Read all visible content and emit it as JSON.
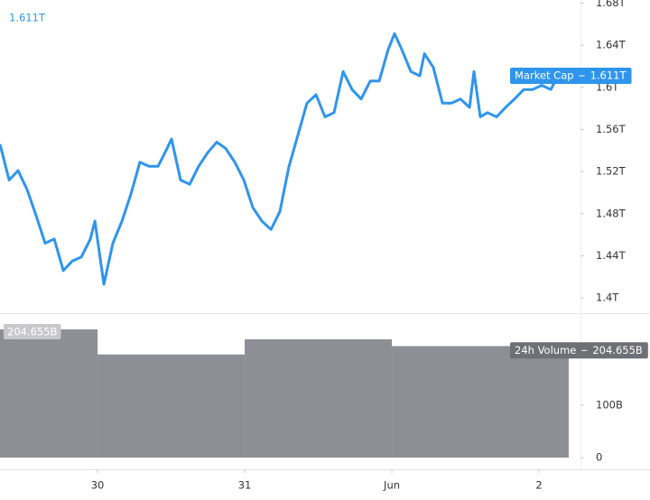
{
  "chart_data": [
    {
      "type": "line",
      "x": [
        -0.663,
        -0.601,
        -0.54,
        -0.479,
        -0.417,
        -0.356,
        -0.294,
        -0.233,
        -0.172,
        -0.11,
        -0.049,
        -0.018,
        0.043,
        0.104,
        0.166,
        0.227,
        0.288,
        0.35,
        0.411,
        0.472,
        0.503,
        0.564,
        0.626,
        0.687,
        0.748,
        0.81,
        0.871,
        0.933,
        0.994,
        1.055,
        1.117,
        1.178,
        1.239,
        1.301,
        1.362,
        1.423,
        1.485,
        1.546,
        1.607,
        1.669,
        1.73,
        1.791,
        1.853,
        1.914,
        1.975,
        2.018,
        2.067,
        2.129,
        2.19,
        2.221,
        2.282,
        2.344,
        2.405,
        2.466,
        2.528,
        2.558,
        2.601,
        2.65,
        2.712,
        2.773,
        2.834,
        2.896,
        2.957,
        3.018,
        3.08,
        3.129
      ],
      "series": [
        {
          "name": "Market Cap",
          "color": "#2f95ec",
          "values": [
            1.546,
            1.512,
            1.521,
            1.503,
            1.478,
            1.452,
            1.456,
            1.426,
            1.435,
            1.439,
            1.456,
            1.473,
            1.413,
            1.452,
            1.473,
            1.499,
            1.529,
            1.525,
            1.525,
            1.542,
            1.551,
            1.512,
            1.508,
            1.525,
            1.538,
            1.548,
            1.542,
            1.529,
            1.512,
            1.486,
            1.473,
            1.465,
            1.482,
            1.525,
            1.555,
            1.585,
            1.593,
            1.572,
            1.576,
            1.615,
            1.598,
            1.589,
            1.606,
            1.606,
            1.636,
            1.651,
            1.636,
            1.615,
            1.611,
            1.632,
            1.619,
            1.585,
            1.585,
            1.589,
            1.581,
            1.615,
            1.572,
            1.576,
            1.572,
            1.581,
            1.589,
            1.598,
            1.598,
            1.602,
            1.598,
            1.611
          ],
          "current": {
            "value": 1.611,
            "label": "1.611T"
          }
        }
      ],
      "xlim": [
        -0.663,
        3.282
      ],
      "ylim": [
        1.383,
        1.683
      ],
      "yticks": [
        {
          "value": 1.4,
          "label": "1.4T"
        },
        {
          "value": 1.44,
          "label": "1.44T"
        },
        {
          "value": 1.48,
          "label": "1.48T"
        },
        {
          "value": 1.52,
          "label": "1.52T"
        },
        {
          "value": 1.56,
          "label": "1.56T"
        },
        {
          "value": 1.6,
          "label": "1.6T"
        },
        {
          "value": 1.64,
          "label": "1.64T"
        },
        {
          "value": 1.68,
          "label": "1.68T"
        }
      ]
    },
    {
      "type": "histogram",
      "name": "24h Volume",
      "color": "#8e8e96",
      "bins": [
        -0.663,
        0,
        1,
        2,
        3.202
      ],
      "values": [
        245,
        197,
        226,
        213
      ],
      "current": {
        "value": 204.655,
        "label": "204.655B"
      },
      "xlim": [
        -0.663,
        3.282
      ],
      "ylim": [
        -22.4,
        270.7
      ],
      "yticks": [
        0,
        {
          "value": 100,
          "label": "100B"
        }
      ],
      "xticks": [
        {
          "value": 0,
          "label": "30"
        },
        {
          "value": 1,
          "label": "31"
        },
        {
          "value": 2,
          "label": "Jun"
        },
        {
          "value": 3,
          "label": "2"
        }
      ]
    }
  ]
}
